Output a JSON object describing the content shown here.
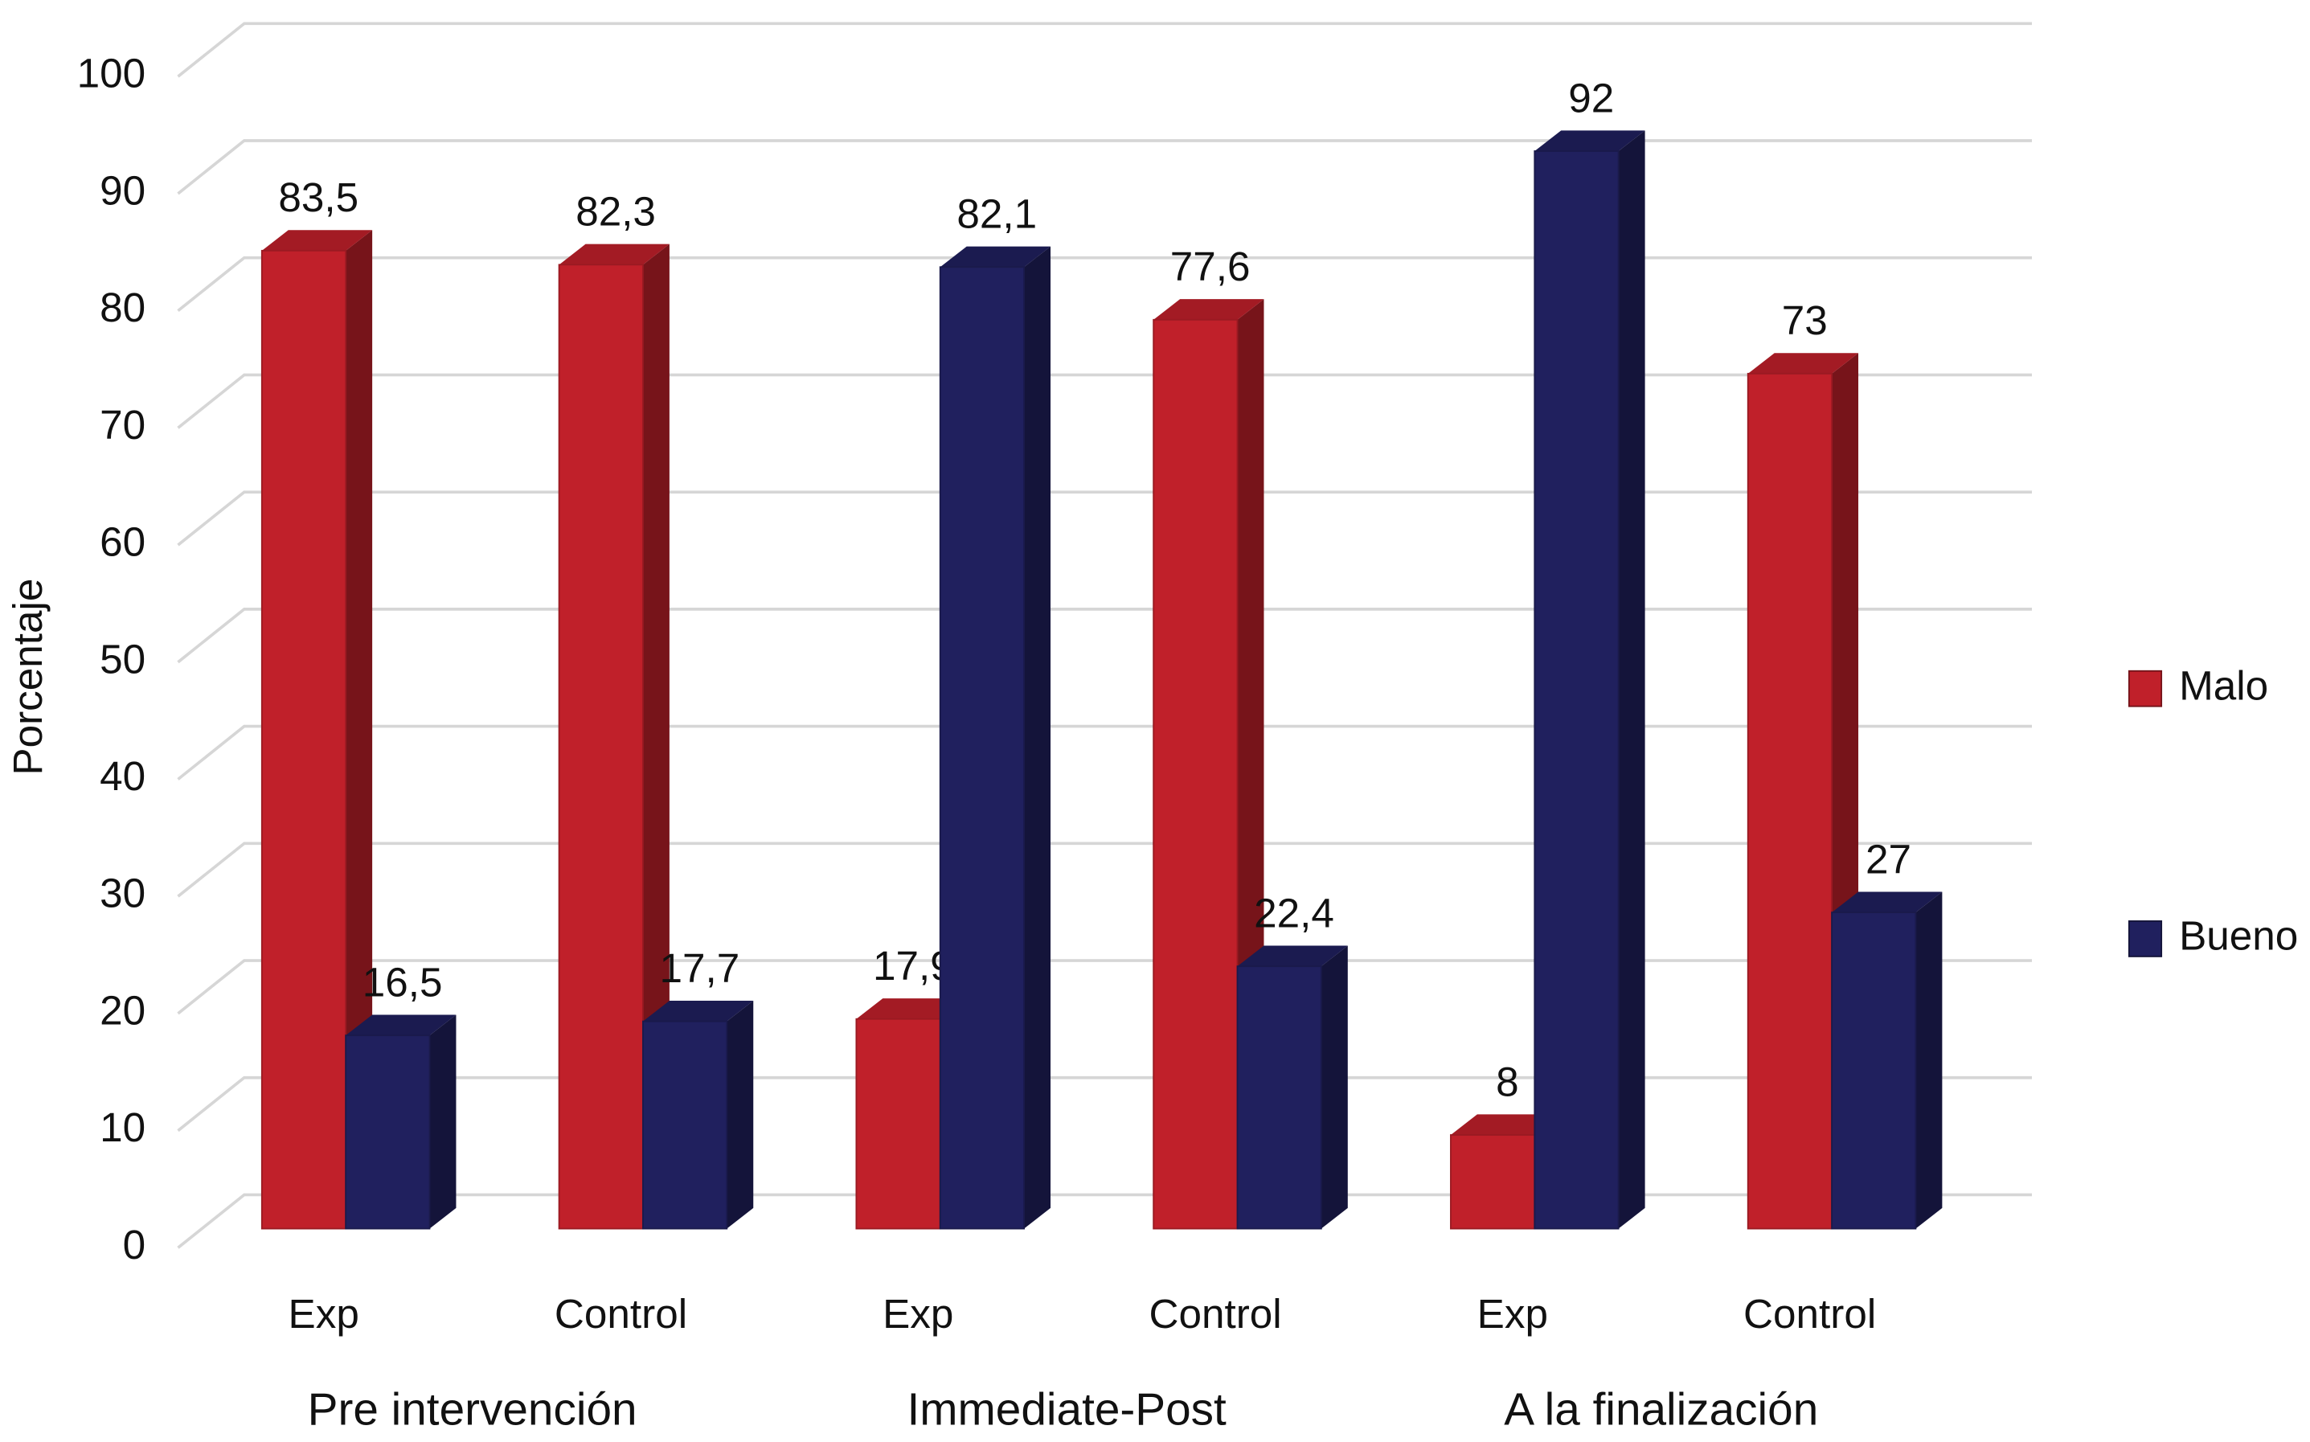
{
  "chart_data": {
    "type": "bar3d",
    "y_axis_label": "Porcentaje",
    "categories": [
      "Exp",
      "Control",
      "Exp",
      "Control",
      "Exp",
      "Control"
    ],
    "groups": [
      "Pre intervención",
      "Immediate-Post",
      "A la finalización"
    ],
    "series": [
      {
        "name": "Malo",
        "color": "#c0202a",
        "values": [
          83.5,
          82.3,
          17.9,
          77.6,
          8,
          73
        ],
        "value_labels": [
          "83,5",
          "82,3",
          "17,9",
          "77,6",
          "8",
          "73"
        ]
      },
      {
        "name": "Bueno",
        "color": "#20205e",
        "values": [
          16.5,
          17.7,
          82.1,
          22.4,
          92,
          27
        ],
        "value_labels": [
          "16,5",
          "17,7",
          "82,1",
          "22,4",
          "92",
          "27"
        ]
      }
    ],
    "ylim": [
      0,
      100
    ],
    "yticks": [
      0,
      10,
      20,
      30,
      40,
      50,
      60,
      70,
      80,
      90,
      100
    ],
    "grid": true
  }
}
